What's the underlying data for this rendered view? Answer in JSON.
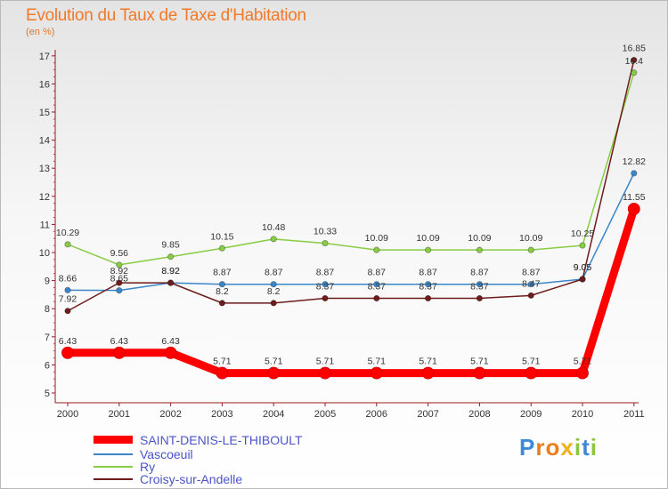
{
  "chart_data": {
    "type": "line",
    "title": "Evolution du Taux de Taxe d'Habitation",
    "subtitle": "(en %)",
    "x": [
      "2000",
      "2001",
      "2002",
      "2003",
      "2004",
      "2005",
      "2006",
      "2007",
      "2008",
      "2009",
      "2010",
      "2011"
    ],
    "yticks": [
      "5",
      "6",
      "7",
      "8",
      "9",
      "10",
      "11",
      "12",
      "13",
      "14",
      "15",
      "16",
      "17"
    ],
    "ylim": [
      5,
      17
    ],
    "grid": false,
    "legend_position": "bottom-left",
    "series": [
      {
        "name": "SAINT-DENIS-LE-THIBOULT",
        "color": "#ff0000",
        "values": [
          6.43,
          6.43,
          6.43,
          5.71,
          5.71,
          5.71,
          5.71,
          5.71,
          5.71,
          5.71,
          5.71,
          11.55
        ],
        "labels": [
          "6.43",
          "6.43",
          "6.43",
          "5.71",
          "5.71",
          "5.71",
          "5.71",
          "5.71",
          "5.71",
          "5.71",
          "5.71",
          "11.55"
        ]
      },
      {
        "name": "Vascoeuil",
        "color": "#3c86c8",
        "values": [
          8.66,
          8.65,
          8.92,
          8.87,
          8.87,
          8.87,
          8.87,
          8.87,
          8.87,
          8.87,
          9.05,
          12.82
        ],
        "labels": [
          "8.66",
          "8.65",
          "8.92",
          "8.87",
          "8.87",
          "8.87",
          "8.87",
          "8.87",
          "8.87",
          "8.87",
          "9.05",
          "12.82"
        ]
      },
      {
        "name": "Ry",
        "color": "#88cc44",
        "values": [
          10.29,
          9.56,
          9.85,
          10.15,
          10.48,
          10.33,
          10.09,
          10.09,
          10.09,
          10.09,
          10.25,
          16.4
        ],
        "labels": [
          "10.29",
          "9.56",
          "9.85",
          "10.15",
          "10.48",
          "10.33",
          "10.09",
          "10.09",
          "10.09",
          "10.09",
          "10.25",
          "16.4"
        ]
      },
      {
        "name": "Croisy-sur-Andelle",
        "color": "#6e1c1c",
        "values": [
          7.92,
          8.92,
          8.92,
          8.2,
          8.2,
          8.37,
          8.37,
          8.37,
          8.37,
          8.47,
          9.05,
          16.85
        ],
        "labels": [
          "7.92",
          "8.92",
          "8.92",
          "8.2",
          "8.2",
          "8.37",
          "8.37",
          "8.37",
          "8.37",
          "8.47",
          "9.05",
          "16.85"
        ]
      }
    ]
  },
  "legend": {
    "items": [
      "SAINT-DENIS-LE-THIBOULT",
      "Vascoeuil",
      "Ry",
      "Croisy-sur-Andelle"
    ]
  },
  "logo": {
    "letters": [
      "P",
      "r",
      "o",
      "x",
      "i",
      "t",
      "i"
    ],
    "colors": [
      "#3b8ad6",
      "#e8801f",
      "#e8801f",
      "#f2b118",
      "#8cc63f",
      "#3b8ad6",
      "#8cc63f"
    ]
  }
}
